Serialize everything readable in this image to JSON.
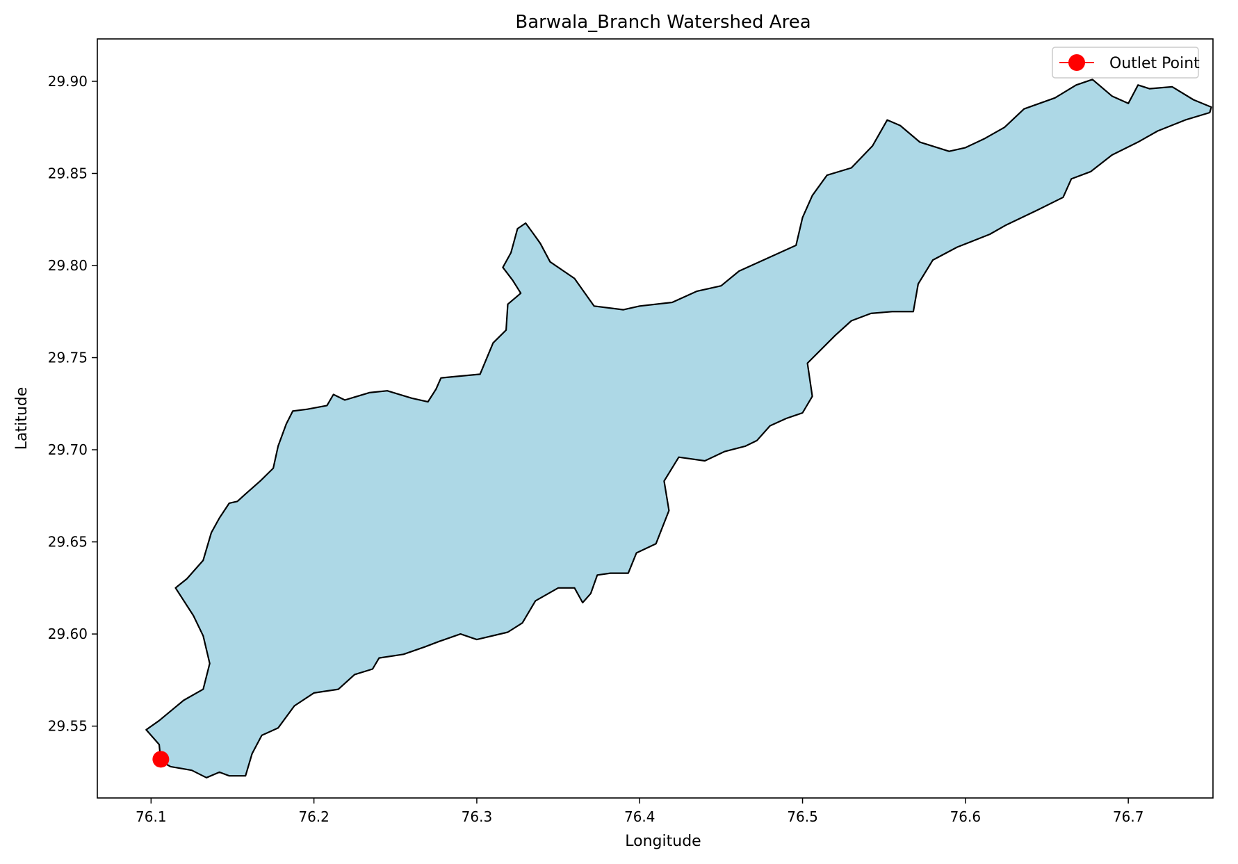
{
  "chart_data": {
    "type": "map",
    "title": "Barwala_Branch Watershed Area",
    "xlabel": "Longitude",
    "ylabel": "Latitude",
    "xlim": [
      76.067,
      76.752
    ],
    "ylim": [
      29.511,
      29.923
    ],
    "x_ticks": [
      {
        "value": 76.1,
        "label": "76.1"
      },
      {
        "value": 76.2,
        "label": "76.2"
      },
      {
        "value": 76.3,
        "label": "76.3"
      },
      {
        "value": 76.4,
        "label": "76.4"
      },
      {
        "value": 76.5,
        "label": "76.5"
      },
      {
        "value": 76.6,
        "label": "76.6"
      },
      {
        "value": 76.7,
        "label": "76.7"
      }
    ],
    "y_ticks": [
      {
        "value": 29.55,
        "label": "29.55"
      },
      {
        "value": 29.6,
        "label": "29.60"
      },
      {
        "value": 29.65,
        "label": "29.65"
      },
      {
        "value": 29.7,
        "label": "29.70"
      },
      {
        "value": 29.75,
        "label": "29.75"
      },
      {
        "value": 29.8,
        "label": "29.80"
      },
      {
        "value": 29.85,
        "label": "29.85"
      },
      {
        "value": 29.9,
        "label": "29.90"
      }
    ],
    "grid": false,
    "legend": {
      "position": "top-right",
      "entries": [
        {
          "label": "Outlet Point",
          "color": "#ff0000",
          "marker": "circle"
        }
      ]
    },
    "watershed": {
      "fill": "#add8e6",
      "edge": "#000000",
      "boundary": [
        [
          76.106,
          29.531
        ],
        [
          76.112,
          29.528
        ],
        [
          76.125,
          29.526
        ],
        [
          76.134,
          29.522
        ],
        [
          76.142,
          29.525
        ],
        [
          76.148,
          29.523
        ],
        [
          76.158,
          29.523
        ],
        [
          76.162,
          29.535
        ],
        [
          76.168,
          29.545
        ],
        [
          76.178,
          29.549
        ],
        [
          76.188,
          29.561
        ],
        [
          76.2,
          29.568
        ],
        [
          76.215,
          29.57
        ],
        [
          76.225,
          29.578
        ],
        [
          76.236,
          29.581
        ],
        [
          76.24,
          29.587
        ],
        [
          76.255,
          29.589
        ],
        [
          76.268,
          29.593
        ],
        [
          76.277,
          29.596
        ],
        [
          76.29,
          29.6
        ],
        [
          76.3,
          29.597
        ],
        [
          76.319,
          29.601
        ],
        [
          76.328,
          29.606
        ],
        [
          76.336,
          29.618
        ],
        [
          76.35,
          29.625
        ],
        [
          76.36,
          29.625
        ],
        [
          76.365,
          29.617
        ],
        [
          76.37,
          29.622
        ],
        [
          76.374,
          29.632
        ],
        [
          76.382,
          29.633
        ],
        [
          76.393,
          29.633
        ],
        [
          76.398,
          29.644
        ],
        [
          76.41,
          29.649
        ],
        [
          76.418,
          29.667
        ],
        [
          76.415,
          29.683
        ],
        [
          76.424,
          29.696
        ],
        [
          76.44,
          29.694
        ],
        [
          76.452,
          29.699
        ],
        [
          76.465,
          29.702
        ],
        [
          76.472,
          29.705
        ],
        [
          76.48,
          29.713
        ],
        [
          76.49,
          29.717
        ],
        [
          76.5,
          29.72
        ],
        [
          76.506,
          29.729
        ],
        [
          76.503,
          29.747
        ],
        [
          76.52,
          29.762
        ],
        [
          76.53,
          29.77
        ],
        [
          76.542,
          29.774
        ],
        [
          76.555,
          29.775
        ],
        [
          76.568,
          29.775
        ],
        [
          76.571,
          29.79
        ],
        [
          76.58,
          29.803
        ],
        [
          76.595,
          29.81
        ],
        [
          76.615,
          29.817
        ],
        [
          76.625,
          29.822
        ],
        [
          76.644,
          29.83
        ],
        [
          76.66,
          29.837
        ],
        [
          76.665,
          29.847
        ],
        [
          76.677,
          29.851
        ],
        [
          76.69,
          29.86
        ],
        [
          76.706,
          29.867
        ],
        [
          76.718,
          29.873
        ],
        [
          76.735,
          29.879
        ],
        [
          76.75,
          29.883
        ],
        [
          76.751,
          29.886
        ],
        [
          76.74,
          29.89
        ],
        [
          76.727,
          29.897
        ],
        [
          76.713,
          29.896
        ],
        [
          76.706,
          29.898
        ],
        [
          76.7,
          29.888
        ],
        [
          76.69,
          29.892
        ],
        [
          76.678,
          29.901
        ],
        [
          76.668,
          29.898
        ],
        [
          76.655,
          29.891
        ],
        [
          76.636,
          29.885
        ],
        [
          76.624,
          29.875
        ],
        [
          76.612,
          29.869
        ],
        [
          76.6,
          29.864
        ],
        [
          76.59,
          29.862
        ],
        [
          76.572,
          29.867
        ],
        [
          76.56,
          29.876
        ],
        [
          76.552,
          29.879
        ],
        [
          76.543,
          29.865
        ],
        [
          76.53,
          29.853
        ],
        [
          76.515,
          29.849
        ],
        [
          76.506,
          29.838
        ],
        [
          76.5,
          29.826
        ],
        [
          76.496,
          29.811
        ],
        [
          76.476,
          29.803
        ],
        [
          76.461,
          29.797
        ],
        [
          76.45,
          29.789
        ],
        [
          76.435,
          29.786
        ],
        [
          76.42,
          29.78
        ],
        [
          76.4,
          29.778
        ],
        [
          76.39,
          29.776
        ],
        [
          76.372,
          29.778
        ],
        [
          76.36,
          29.793
        ],
        [
          76.345,
          29.802
        ],
        [
          76.339,
          29.812
        ],
        [
          76.335,
          29.817
        ],
        [
          76.33,
          29.823
        ],
        [
          76.325,
          29.82
        ],
        [
          76.321,
          29.807
        ],
        [
          76.316,
          29.799
        ],
        [
          76.322,
          29.792
        ],
        [
          76.327,
          29.785
        ],
        [
          76.319,
          29.779
        ],
        [
          76.318,
          29.765
        ],
        [
          76.31,
          29.758
        ],
        [
          76.302,
          29.741
        ],
        [
          76.29,
          29.74
        ],
        [
          76.278,
          29.739
        ],
        [
          76.275,
          29.733
        ],
        [
          76.27,
          29.726
        ],
        [
          76.26,
          29.728
        ],
        [
          76.245,
          29.732
        ],
        [
          76.234,
          29.731
        ],
        [
          76.219,
          29.727
        ],
        [
          76.212,
          29.73
        ],
        [
          76.208,
          29.724
        ],
        [
          76.196,
          29.722
        ],
        [
          76.187,
          29.721
        ],
        [
          76.183,
          29.714
        ],
        [
          76.178,
          29.702
        ],
        [
          76.175,
          29.69
        ],
        [
          76.167,
          29.683
        ],
        [
          76.158,
          29.676
        ],
        [
          76.153,
          29.672
        ],
        [
          76.148,
          29.671
        ],
        [
          76.142,
          29.663
        ],
        [
          76.137,
          29.655
        ],
        [
          76.132,
          29.64
        ],
        [
          76.122,
          29.63
        ],
        [
          76.115,
          29.625
        ],
        [
          76.126,
          29.61
        ],
        [
          76.132,
          29.599
        ],
        [
          76.136,
          29.584
        ],
        [
          76.132,
          29.57
        ],
        [
          76.12,
          29.564
        ],
        [
          76.105,
          29.553
        ],
        [
          76.097,
          29.548
        ],
        [
          76.105,
          29.54
        ]
      ]
    },
    "points": [
      {
        "name": "Outlet Point",
        "x": 76.106,
        "y": 29.532,
        "color": "#ff0000"
      }
    ]
  }
}
